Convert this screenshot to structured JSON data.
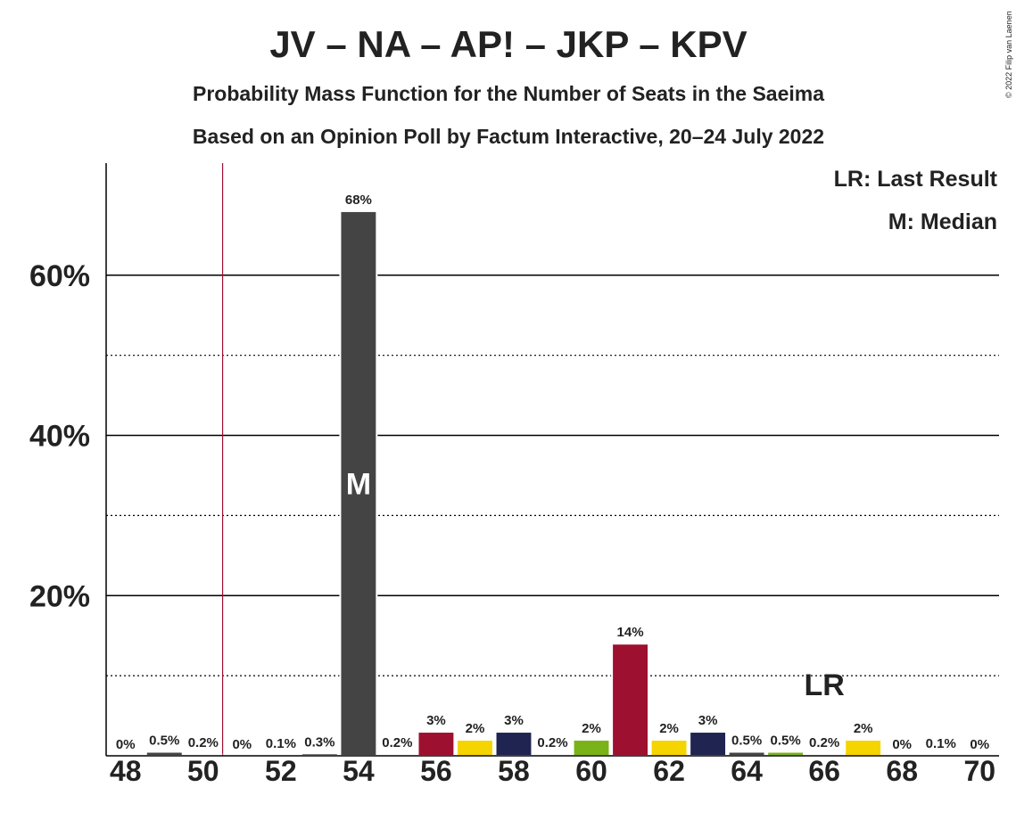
{
  "chart_data": {
    "type": "bar",
    "title": "JV – NA – AP! – JKP – KPV",
    "subtitle": "Probability Mass Function for the Number of Seats in the Saeima",
    "subtitle2": "Based on an Opinion Poll by Factum Interactive, 20–24 July 2022",
    "copyright": "© 2022 Filip van Laenen",
    "legend": [
      "LR: Last Result",
      "M: Median"
    ],
    "x": [
      48,
      49,
      50,
      51,
      52,
      53,
      54,
      55,
      56,
      57,
      58,
      59,
      60,
      61,
      62,
      63,
      64,
      65,
      66,
      67,
      68,
      69,
      70
    ],
    "values": [
      0,
      0.5,
      0.2,
      0,
      0.1,
      0.3,
      68,
      0.2,
      3,
      2,
      3,
      0.2,
      2,
      14,
      2,
      3,
      0.5,
      0.5,
      0.2,
      2,
      0,
      0.1,
      0
    ],
    "value_labels": [
      "0%",
      "0.5%",
      "0.2%",
      "0%",
      "0.1%",
      "0.3%",
      "68%",
      "0.2%",
      "3%",
      "2%",
      "3%",
      "0.2%",
      "2%",
      "14%",
      "2%",
      "3%",
      "0.5%",
      "0.5%",
      "0.2%",
      "2%",
      "0%",
      "0.1%",
      "0%"
    ],
    "colors": [
      "#444444",
      "#444444",
      "#444444",
      "#444444",
      "#444444",
      "#444444",
      "#444444",
      "#1f2550",
      "#9e1030",
      "#f5d400",
      "#1f2550",
      "#7ab317",
      "#7ab317",
      "#9e1030",
      "#f5d400",
      "#1f2550",
      "#444444",
      "#7ab317",
      "#9e1030",
      "#f5d400",
      "#1f2550",
      "#444444",
      "#7ab317"
    ],
    "xlim": [
      47.5,
      70.5
    ],
    "xticks": [
      48,
      50,
      52,
      54,
      56,
      58,
      60,
      62,
      64,
      66,
      68,
      70
    ],
    "ylim": [
      0,
      74
    ],
    "yticks": [
      {
        "value": 20,
        "label": "20%"
      },
      {
        "value": 40,
        "label": "40%"
      },
      {
        "value": 60,
        "label": "60%"
      }
    ],
    "minor_grid": [
      10,
      30,
      50
    ],
    "last_result_line": 50.5,
    "last_result_label": {
      "x": 66,
      "text": "LR"
    },
    "median_label": {
      "x": 54,
      "text": "M"
    }
  }
}
